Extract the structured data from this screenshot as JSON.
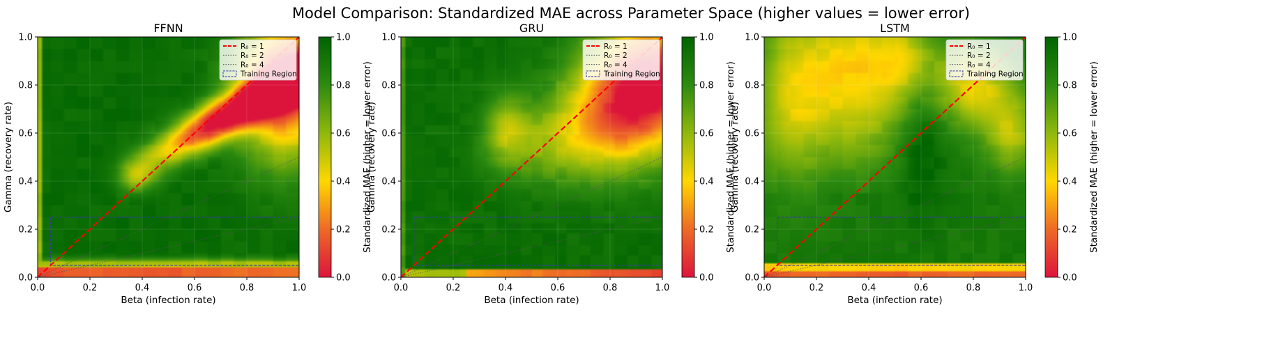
{
  "suptitle": "Model Comparison: Standardized MAE across Parameter Space (higher values = lower error)",
  "colorbar_label": "Standardized MAE (higher = lower error)",
  "colorscale": [
    {
      "value": 0.0,
      "color": "#dc143c"
    },
    {
      "value": 0.2,
      "color": "#ee6a26"
    },
    {
      "value": 0.4,
      "color": "#ffd700"
    },
    {
      "value": 0.6,
      "color": "#8fb80c"
    },
    {
      "value": 0.8,
      "color": "#2e8b10"
    },
    {
      "value": 1.0,
      "color": "#006400"
    }
  ],
  "chart_data": [
    {
      "type": "heatmap",
      "title": "FFNN",
      "xlabel": "Beta (infection rate)",
      "ylabel": "Gamma (recovery rate)",
      "xlim": [
        0,
        1
      ],
      "ylim": [
        0,
        1
      ],
      "xticks": [
        "0.0",
        "0.2",
        "0.4",
        "0.6",
        "0.8",
        "1.0"
      ],
      "yticks": [
        "0.0",
        "0.2",
        "0.4",
        "0.6",
        "0.8",
        "1.0"
      ],
      "colorbar_ticks": [
        "0.0",
        "0.2",
        "0.4",
        "0.6",
        "0.8",
        "1.0"
      ],
      "legend": [
        "R₀ = 1",
        "R₀ = 2",
        "R₀ = 4",
        "Training Region"
      ],
      "legend_placement": "top-right",
      "reference_lines": [
        {
          "label": "R₀ = 1",
          "slope": 1.0,
          "color": "#ff0000",
          "style": "dashed"
        },
        {
          "label": "R₀ = 2",
          "slope": 0.5,
          "color": "#555555",
          "style": "dotted"
        },
        {
          "label": "R₀ = 4",
          "slope": 0.25,
          "color": "#555555",
          "style": "dotted"
        }
      ],
      "training_region": {
        "beta": [
          0.05,
          1.0
        ],
        "gamma": [
          0.05,
          0.25
        ]
      },
      "error_regions": [
        {
          "description": "low-gamma band",
          "beta": [
            0.0,
            1.0
          ],
          "gamma": [
            0.0,
            0.05
          ],
          "standardized_mae": 0.1
        },
        {
          "description": "high-beta high-gamma wedge",
          "beta": [
            0.45,
            1.0
          ],
          "gamma": [
            0.4,
            1.0
          ],
          "standardized_mae": 0.1
        }
      ]
    },
    {
      "type": "heatmap",
      "title": "GRU",
      "xlabel": "Beta (infection rate)",
      "ylabel": "Gamma (recovery rate)",
      "xlim": [
        0,
        1
      ],
      "ylim": [
        0,
        1
      ],
      "xticks": [
        "0.0",
        "0.2",
        "0.4",
        "0.6",
        "0.8",
        "1.0"
      ],
      "yticks": [
        "0.0",
        "0.2",
        "0.4",
        "0.6",
        "0.8",
        "1.0"
      ],
      "colorbar_ticks": [
        "0.0",
        "0.2",
        "0.4",
        "0.6",
        "0.8",
        "1.0"
      ],
      "legend": [
        "R₀ = 1",
        "R₀ = 2",
        "R₀ = 4",
        "Training Region"
      ],
      "legend_placement": "top-right",
      "reference_lines": [
        {
          "label": "R₀ = 1",
          "slope": 1.0,
          "color": "#ff0000",
          "style": "dashed"
        },
        {
          "label": "R₀ = 2",
          "slope": 0.5,
          "color": "#555555",
          "style": "dotted"
        },
        {
          "label": "R₀ = 4",
          "slope": 0.25,
          "color": "#555555",
          "style": "dotted"
        }
      ],
      "training_region": {
        "beta": [
          0.05,
          1.0
        ],
        "gamma": [
          0.05,
          0.25
        ]
      },
      "error_regions": [
        {
          "description": "low-gamma band",
          "beta": [
            0.1,
            1.0
          ],
          "gamma": [
            0.0,
            0.05
          ],
          "standardized_mae": 0.3
        },
        {
          "description": "top-right corner",
          "beta": [
            0.6,
            1.0
          ],
          "gamma": [
            0.6,
            1.0
          ],
          "standardized_mae": 0.15
        }
      ]
    },
    {
      "type": "heatmap",
      "title": "LSTM",
      "xlabel": "Beta (infection rate)",
      "ylabel": "Gamma (recovery rate)",
      "xlim": [
        0,
        1
      ],
      "ylim": [
        0,
        1
      ],
      "xticks": [
        "0.0",
        "0.2",
        "0.4",
        "0.6",
        "0.8",
        "1.0"
      ],
      "yticks": [
        "0.0",
        "0.2",
        "0.4",
        "0.6",
        "0.8",
        "1.0"
      ],
      "colorbar_ticks": [
        "0.0",
        "0.2",
        "0.4",
        "0.6",
        "0.8",
        "1.0"
      ],
      "legend": [
        "R₀ = 1",
        "R₀ = 2",
        "R₀ = 4",
        "Training Region"
      ],
      "legend_placement": "top-right",
      "reference_lines": [
        {
          "label": "R₀ = 1",
          "slope": 1.0,
          "color": "#ff0000",
          "style": "dashed"
        },
        {
          "label": "R₀ = 2",
          "slope": 0.5,
          "color": "#555555",
          "style": "dotted"
        },
        {
          "label": "R₀ = 4",
          "slope": 0.25,
          "color": "#555555",
          "style": "dotted"
        }
      ],
      "training_region": {
        "beta": [
          0.05,
          1.0
        ],
        "gamma": [
          0.05,
          0.25
        ]
      },
      "error_regions": [
        {
          "description": "low-gamma band",
          "beta": [
            0.0,
            1.0
          ],
          "gamma": [
            0.0,
            0.05
          ],
          "standardized_mae": 0.2
        },
        {
          "description": "upper-left yellow zone",
          "beta": [
            0.0,
            0.55
          ],
          "gamma": [
            0.4,
            1.0
          ],
          "standardized_mae": 0.45
        },
        {
          "description": "top-right corner",
          "beta": [
            0.75,
            1.0
          ],
          "gamma": [
            0.6,
            1.0
          ],
          "standardized_mae": 0.45
        }
      ]
    }
  ]
}
